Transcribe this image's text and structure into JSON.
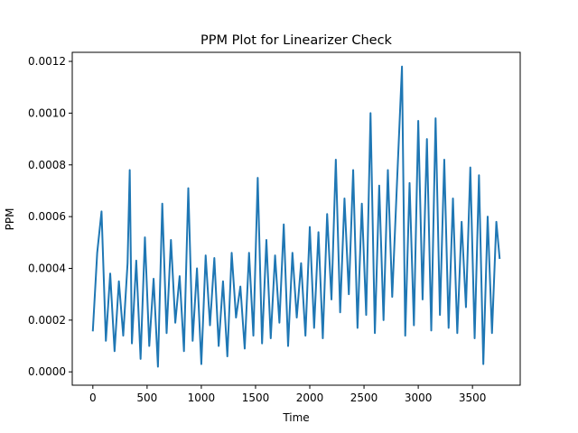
{
  "chart_data": {
    "type": "line",
    "title": "PPM Plot for Linearizer Check",
    "xlabel": "Time",
    "ylabel": "PPM",
    "xlim": [
      -190,
      3940
    ],
    "ylim": [
      -5.15e-05,
      0.001235
    ],
    "xticks": [
      0,
      500,
      1000,
      1500,
      2000,
      2500,
      3000,
      3500
    ],
    "xtick_labels": [
      "0",
      "500",
      "1000",
      "1500",
      "2000",
      "2500",
      "3000",
      "3500"
    ],
    "yticks": [
      0.0,
      0.0002,
      0.0004,
      0.0006,
      0.0008,
      0.001,
      0.0012
    ],
    "ytick_labels": [
      "0.0000",
      "0.0002",
      "0.0004",
      "0.0006",
      "0.0008",
      "0.0010",
      "0.0012"
    ],
    "grid": false,
    "legend": "none",
    "series": [
      {
        "color": "#1f77b4",
        "x": [
          0,
          40,
          80,
          120,
          160,
          200,
          240,
          280,
          320,
          340,
          360,
          400,
          440,
          480,
          520,
          560,
          600,
          640,
          680,
          720,
          760,
          800,
          840,
          880,
          920,
          960,
          1000,
          1040,
          1080,
          1120,
          1160,
          1200,
          1240,
          1280,
          1320,
          1360,
          1400,
          1440,
          1480,
          1520,
          1560,
          1600,
          1640,
          1680,
          1720,
          1760,
          1800,
          1840,
          1880,
          1920,
          1960,
          2000,
          2040,
          2080,
          2120,
          2160,
          2200,
          2240,
          2280,
          2320,
          2360,
          2400,
          2440,
          2480,
          2520,
          2560,
          2600,
          2640,
          2680,
          2720,
          2760,
          2800,
          2850,
          2880,
          2920,
          2960,
          3000,
          3040,
          3080,
          3120,
          3160,
          3200,
          3240,
          3280,
          3320,
          3360,
          3400,
          3440,
          3480,
          3520,
          3560,
          3600,
          3640,
          3680,
          3720,
          3750
        ],
        "values": [
          0.00016,
          0.00046,
          0.00062,
          0.00012,
          0.00038,
          8e-05,
          0.00035,
          0.00014,
          0.00042,
          0.00078,
          0.00011,
          0.00043,
          5e-05,
          0.00052,
          0.0001,
          0.00036,
          2e-05,
          0.00065,
          0.00015,
          0.00051,
          0.00019,
          0.00037,
          8e-05,
          0.00071,
          0.00012,
          0.0004,
          3e-05,
          0.00045,
          0.00018,
          0.00044,
          0.0001,
          0.00035,
          6e-05,
          0.00046,
          0.00021,
          0.00033,
          9e-05,
          0.00046,
          0.00014,
          0.00075,
          0.00011,
          0.00051,
          0.00013,
          0.00045,
          0.00019,
          0.00057,
          0.0001,
          0.00046,
          0.00021,
          0.00042,
          0.00014,
          0.00056,
          0.00017,
          0.00054,
          0.00013,
          0.00061,
          0.00028,
          0.00082,
          0.00023,
          0.00067,
          0.0003,
          0.00078,
          0.00017,
          0.00065,
          0.00022,
          0.001,
          0.00015,
          0.00072,
          0.0002,
          0.00078,
          0.00029,
          0.00069,
          0.00118,
          0.00014,
          0.00073,
          0.00018,
          0.00097,
          0.00028,
          0.0009,
          0.00016,
          0.00098,
          0.00022,
          0.00082,
          0.00017,
          0.00067,
          0.00015,
          0.00058,
          0.00025,
          0.00079,
          0.00013,
          0.00076,
          3e-05,
          0.0006,
          0.00015,
          0.00058,
          0.00044
        ]
      }
    ]
  }
}
